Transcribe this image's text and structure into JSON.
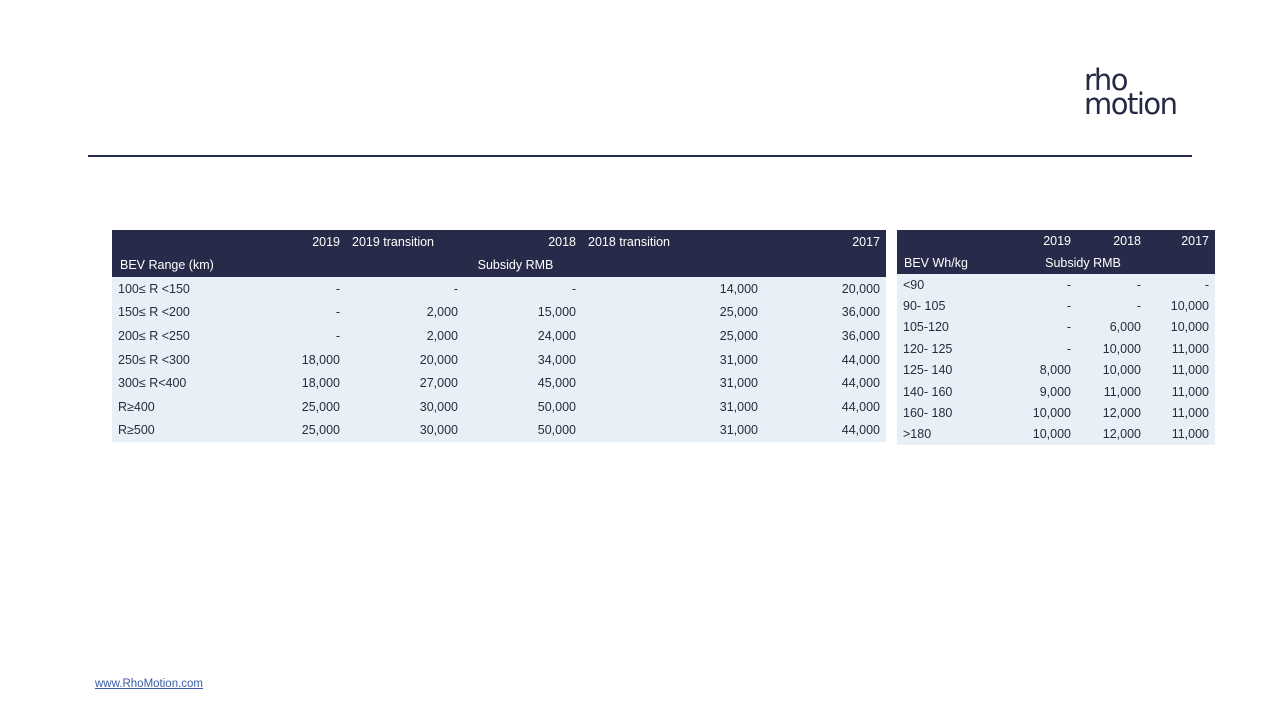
{
  "logo": {
    "line1": "rho",
    "line2": "motion"
  },
  "table_range": {
    "header_years": [
      "2019",
      "2019 transition",
      "2018",
      "2018 transition",
      "2017"
    ],
    "row_label_header": "BEV Range (km)",
    "unit_label": "Subsidy RMB",
    "rows": [
      {
        "label": "100≤ R <150",
        "values": [
          "-",
          "-",
          "-",
          "14,000",
          "20,000"
        ]
      },
      {
        "label": "150≤ R <200",
        "values": [
          "-",
          "2,000",
          "15,000",
          "25,000",
          "36,000"
        ]
      },
      {
        "label": "200≤ R <250",
        "values": [
          "-",
          "2,000",
          "24,000",
          "25,000",
          "36,000"
        ]
      },
      {
        "label": "250≤ R <300",
        "values": [
          "18,000",
          "20,000",
          "34,000",
          "31,000",
          "44,000"
        ]
      },
      {
        "label": "300≤ R<400",
        "values": [
          "18,000",
          "27,000",
          "45,000",
          "31,000",
          "44,000"
        ]
      },
      {
        "label": "R≥400",
        "values": [
          "25,000",
          "30,000",
          "50,000",
          "31,000",
          "44,000"
        ]
      },
      {
        "label": "R≥500",
        "values": [
          "25,000",
          "30,000",
          "50,000",
          "31,000",
          "44,000"
        ]
      }
    ]
  },
  "table_density": {
    "header_years": [
      "2019",
      "2018",
      "2017"
    ],
    "row_label_header": "BEV Wh/kg",
    "unit_label": "Subsidy RMB",
    "rows": [
      {
        "label": "<90",
        "values": [
          "-",
          "-",
          "-"
        ]
      },
      {
        "label": "90- 105",
        "values": [
          "-",
          "-",
          "10,000"
        ]
      },
      {
        "label": "105-120",
        "values": [
          "-",
          "6,000",
          "10,000"
        ]
      },
      {
        "label": "120- 125",
        "values": [
          "-",
          "10,000",
          "11,000"
        ]
      },
      {
        "label": "125- 140",
        "values": [
          "8,000",
          "10,000",
          "11,000"
        ]
      },
      {
        "label": "140- 160",
        "values": [
          "9,000",
          "11,000",
          "11,000"
        ]
      },
      {
        "label": "160- 180",
        "values": [
          "10,000",
          "12,000",
          "11,000"
        ]
      },
      {
        "label": ">180",
        "values": [
          "10,000",
          "12,000",
          "11,000"
        ]
      }
    ]
  },
  "footer": {
    "link_text": "www.RhoMotion.com"
  },
  "colors": {
    "header_bg": "#272a48",
    "row_bg": "#e7f0f7",
    "logo": "#252a45"
  }
}
